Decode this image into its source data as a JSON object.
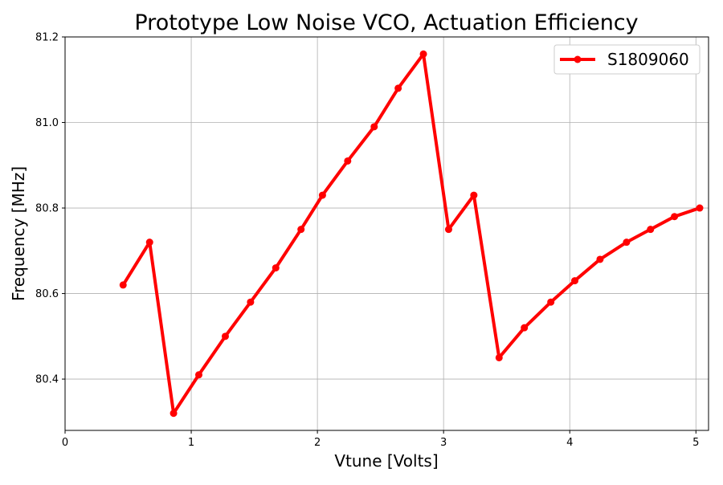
{
  "chart_data": {
    "type": "line",
    "title": "Prototype Low Noise VCO, Actuation Efficiency",
    "xlabel": "Vtune [Volts]",
    "ylabel": "Frequency [MHz]",
    "xlim": [
      0,
      5.1
    ],
    "ylim": [
      80.28,
      81.2
    ],
    "xticks": [
      0,
      1,
      2,
      3,
      4,
      5
    ],
    "xtick_labels": [
      "0",
      "1",
      "2",
      "3",
      "4",
      "5"
    ],
    "yticks": [
      80.4,
      80.6,
      80.8,
      81.0,
      81.2
    ],
    "ytick_labels": [
      "80.4",
      "80.6",
      "80.8",
      "81.0",
      "81.2"
    ],
    "grid": true,
    "legend_position": "top-right",
    "series": [
      {
        "name": "S1809060",
        "color": "#ff0000",
        "marker": "circle",
        "points": [
          [
            0.46,
            80.62
          ],
          [
            0.67,
            80.72
          ],
          [
            0.86,
            80.32
          ],
          [
            1.06,
            80.41
          ],
          [
            1.27,
            80.5
          ],
          [
            1.47,
            80.58
          ],
          [
            1.67,
            80.66
          ],
          [
            1.87,
            80.75
          ],
          [
            2.04,
            80.83
          ],
          [
            2.24,
            80.91
          ],
          [
            2.45,
            80.99
          ],
          [
            2.64,
            81.08
          ],
          [
            2.84,
            81.16
          ],
          [
            3.04,
            80.75
          ],
          [
            3.24,
            80.83
          ],
          [
            3.44,
            80.45
          ],
          [
            3.64,
            80.52
          ],
          [
            3.85,
            80.58
          ],
          [
            4.04,
            80.63
          ],
          [
            4.24,
            80.68
          ],
          [
            4.45,
            80.72
          ],
          [
            4.64,
            80.75
          ],
          [
            4.83,
            80.78
          ],
          [
            5.03,
            80.8
          ]
        ]
      }
    ]
  }
}
